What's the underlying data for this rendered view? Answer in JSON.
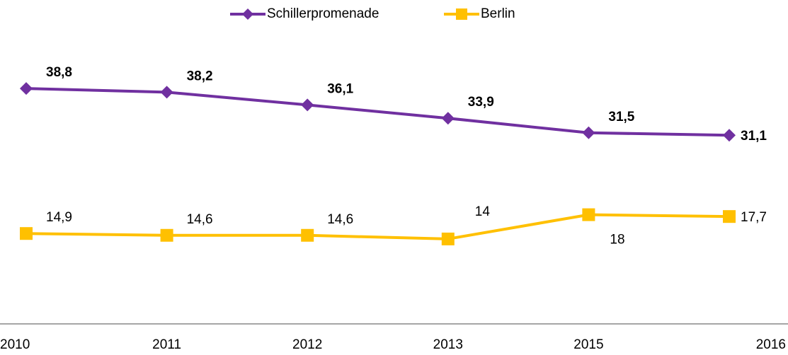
{
  "chart_data": {
    "type": "line",
    "categories": [
      "2010",
      "2011",
      "2012",
      "2013",
      "2015",
      "2016"
    ],
    "series": [
      {
        "name": "Schillerpromenade",
        "color": "#7030a0",
        "values": [
          38.8,
          38.2,
          36.1,
          33.9,
          31.5,
          31.1
        ],
        "value_labels": [
          "38,8",
          "38,2",
          "36,1",
          "33,9",
          "31,5",
          "31,1"
        ]
      },
      {
        "name": "Berlin",
        "color": "#ffc000",
        "values": [
          14.9,
          14.6,
          14.6,
          14,
          18,
          17.7
        ],
        "value_labels": [
          "14,9",
          "14,6",
          "14,6",
          "14",
          "18",
          "17,7"
        ]
      }
    ],
    "ylim": [
      0,
      45
    ],
    "legend": "top"
  }
}
